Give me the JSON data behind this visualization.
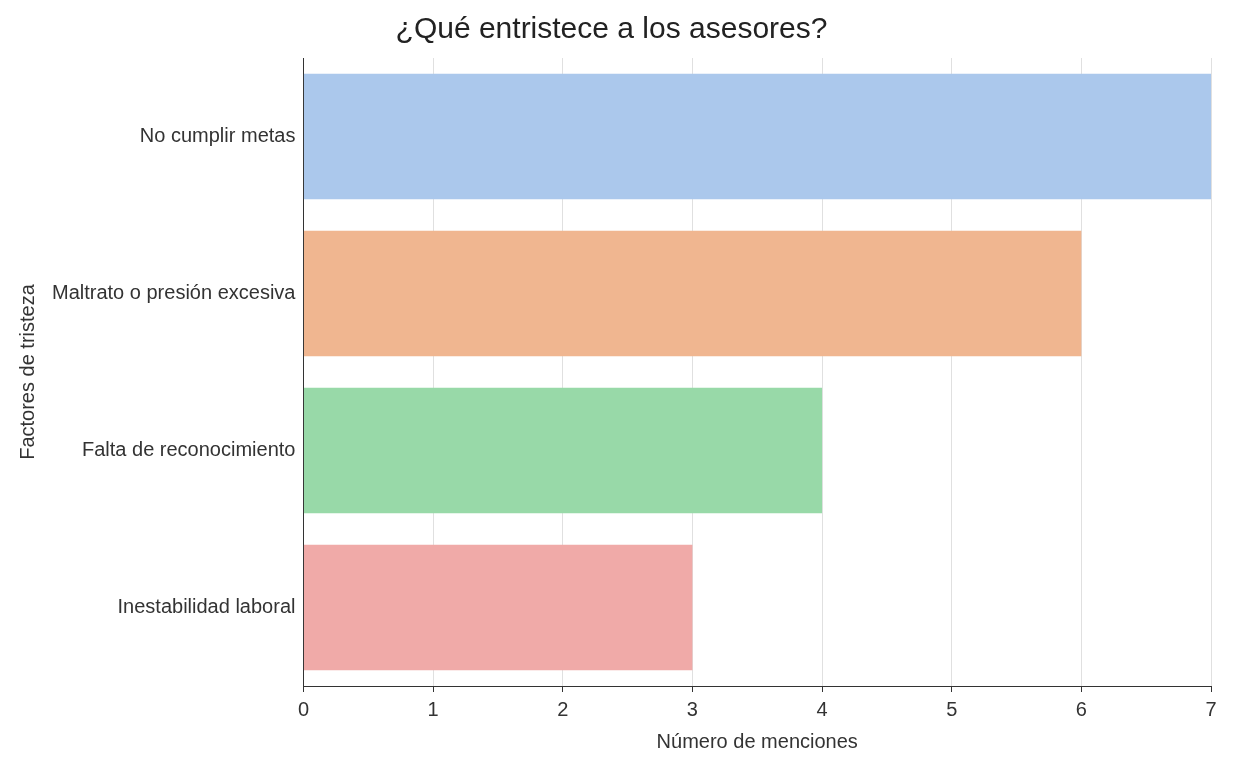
{
  "chart_data": {
    "type": "bar",
    "orientation": "horizontal",
    "title": "¿Qué entristece a los asesores?",
    "xlabel": "Número de menciones",
    "ylabel": "Factores de tristeza",
    "categories": [
      "No cumplir metas",
      "Maltrato o presión excesiva",
      "Falta de reconocimiento",
      "Inestabilidad laboral"
    ],
    "values": [
      7,
      6,
      4,
      3
    ],
    "colors": [
      "#abc8ec",
      "#f0b690",
      "#98d9a8",
      "#f0aaa8"
    ],
    "xlim": [
      0,
      7
    ],
    "xticks": [
      0,
      1,
      2,
      3,
      4,
      5,
      6,
      7
    ],
    "grid": "x",
    "legend": false
  }
}
